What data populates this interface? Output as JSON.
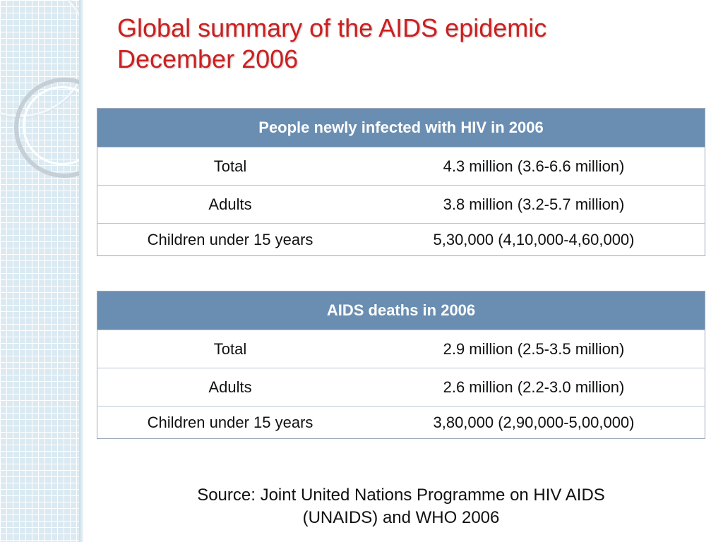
{
  "title": {
    "line1": "Global summary of the AIDS epidemic",
    "line2": "December 2006"
  },
  "tables": [
    {
      "header": "People newly infected with HIV in 2006",
      "rows": [
        {
          "label": "Total",
          "value": "4.3 million (3.6-6.6 million)"
        },
        {
          "label": "Adults",
          "value": "3.8 million (3.2-5.7 million)"
        },
        {
          "label": "Children under 15 years",
          "value": "5,30,000 (4,10,000-4,60,000)"
        }
      ]
    },
    {
      "header": "AIDS deaths in 2006",
      "rows": [
        {
          "label": "Total",
          "value": "2.9 million (2.5-3.5 million)"
        },
        {
          "label": "Adults",
          "value": "2.6 million (2.2-3.0 million)"
        },
        {
          "label": "Children under 15 years",
          "value": "3,80,000 (2,90,000-5,00,000)"
        }
      ]
    }
  ],
  "source": {
    "line1": "Source: Joint United Nations Programme on HIV AIDS",
    "line2": "(UNAIDS) and WHO 2006"
  },
  "colors": {
    "title": "#cc1f1f",
    "table_header_bg": "#6a8eb1",
    "side_panel": "#dbeaf2"
  }
}
